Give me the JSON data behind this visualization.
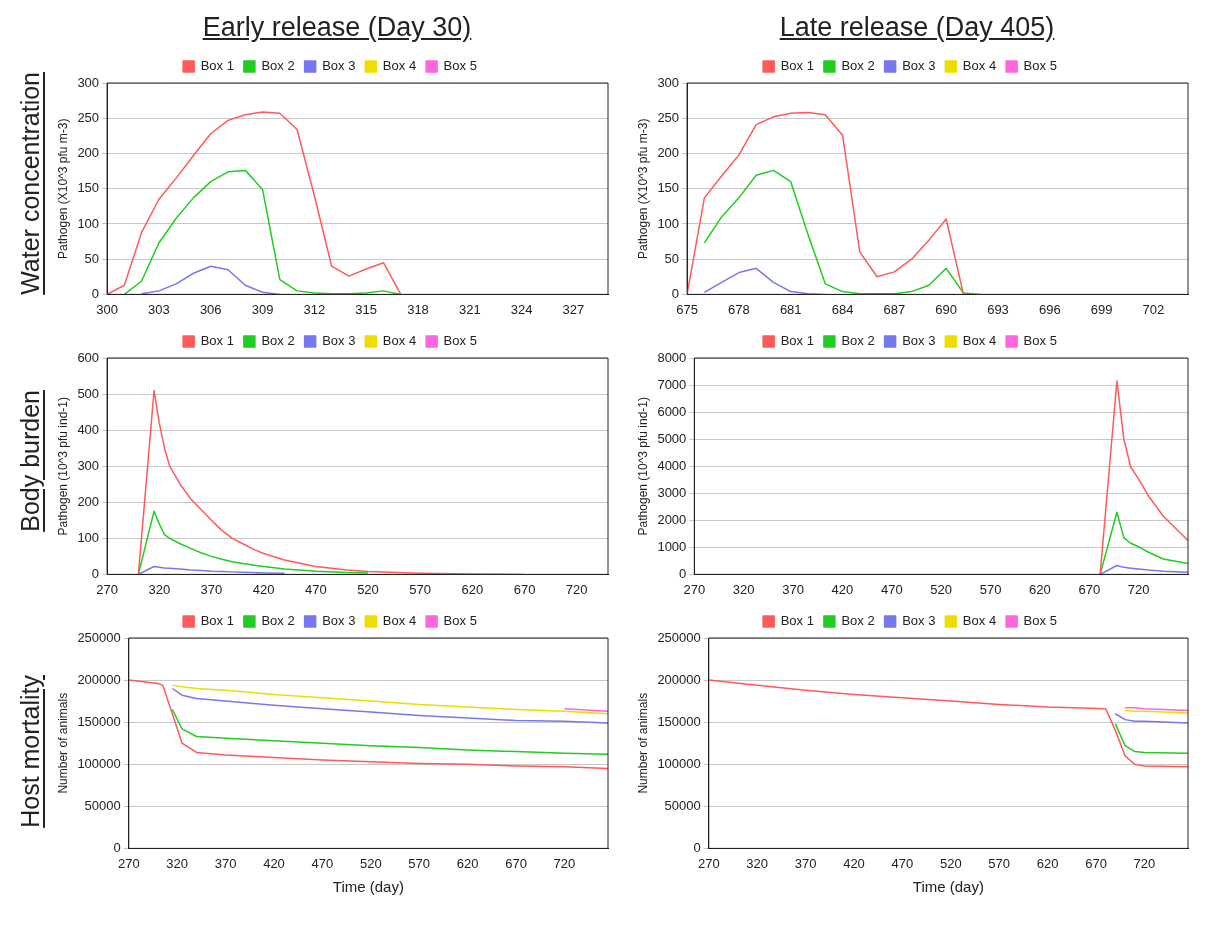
{
  "chart_data": [
    {
      "type": "line",
      "title": "Early release (Day 30)",
      "annotations": [
        "Water concentration"
      ],
      "ylabel": "Pathogen (X10^3 pfu m-3)",
      "xlim": [
        300,
        329
      ],
      "xticks": [
        300,
        303,
        306,
        309,
        312,
        315,
        318,
        321,
        324,
        327
      ],
      "ylim": [
        0,
        300
      ],
      "yticks": [
        0,
        50,
        100,
        150,
        200,
        250,
        300
      ],
      "grid": "y",
      "legend": "top",
      "marker": "none",
      "line_style": "solid",
      "x": [
        300,
        301,
        302,
        303,
        304,
        305,
        306,
        307,
        308,
        309,
        310,
        311,
        312,
        313,
        314,
        315,
        316,
        317
      ],
      "series": [
        {
          "name": "Box 1",
          "color": "#ff5a5a",
          "values": [
            0,
            13,
            88,
            135,
            165,
            197,
            228,
            247,
            255,
            259,
            257,
            234,
            140,
            40,
            26,
            36,
            45,
            0
          ]
        },
        {
          "name": "Box 2",
          "color": "#22cc22",
          "values": [
            null,
            0,
            19,
            73,
            108,
            137,
            160,
            174,
            176,
            149,
            21,
            5,
            2,
            1,
            1,
            2,
            5,
            0
          ]
        },
        {
          "name": "Box 3",
          "color": "#7777ee",
          "values": [
            null,
            null,
            1,
            5,
            15,
            30,
            40,
            35,
            13,
            3,
            0,
            null,
            null,
            null,
            null,
            null,
            null,
            null
          ]
        },
        {
          "name": "Box 4",
          "color": "#eedd00",
          "values": [
            null,
            null,
            null,
            null,
            null,
            null,
            null,
            null,
            null,
            null,
            null,
            null,
            null,
            null,
            null,
            null,
            null,
            null
          ]
        },
        {
          "name": "Box 5",
          "color": "#ff66dd",
          "values": [
            null,
            null,
            null,
            null,
            null,
            null,
            null,
            null,
            null,
            null,
            null,
            null,
            null,
            null,
            null,
            null,
            null,
            null
          ]
        }
      ]
    },
    {
      "type": "line",
      "title": "Late release (Day 405)",
      "ylabel": "Pathogen (X10^3 pfu m-3)",
      "xlim": [
        675,
        704
      ],
      "xticks": [
        675,
        678,
        681,
        684,
        687,
        690,
        693,
        696,
        699,
        702
      ],
      "ylim": [
        0,
        300
      ],
      "yticks": [
        0,
        50,
        100,
        150,
        200,
        250,
        300
      ],
      "grid": "y",
      "legend": "top",
      "marker": "none",
      "line_style": "solid",
      "x": [
        675,
        676,
        677,
        678,
        679,
        680,
        681,
        682,
        683,
        684,
        685,
        686,
        687,
        688,
        689,
        690,
        691,
        692
      ],
      "series": [
        {
          "name": "Box 1",
          "color": "#ff5a5a",
          "values": [
            0,
            137,
            168,
            198,
            241,
            252,
            257,
            258,
            255,
            226,
            60,
            25,
            32,
            50,
            77,
            107,
            0,
            null
          ]
        },
        {
          "name": "Box 2",
          "color": "#22cc22",
          "values": [
            null,
            73,
            110,
            137,
            169,
            176,
            160,
            85,
            15,
            4,
            1,
            1,
            1,
            4,
            13,
            37,
            2,
            0
          ]
        },
        {
          "name": "Box 3",
          "color": "#7777ee",
          "values": [
            null,
            3,
            17,
            31,
            37,
            17,
            4,
            1,
            0,
            null,
            null,
            null,
            null,
            null,
            null,
            null,
            null,
            null
          ]
        },
        {
          "name": "Box 4",
          "color": "#eedd00",
          "values": [
            null,
            null,
            null,
            null,
            null,
            null,
            null,
            null,
            null,
            null,
            null,
            null,
            null,
            null,
            null,
            null,
            null,
            null
          ]
        },
        {
          "name": "Box 5",
          "color": "#ff66dd",
          "values": [
            null,
            null,
            null,
            null,
            null,
            null,
            null,
            null,
            null,
            null,
            null,
            null,
            null,
            null,
            null,
            null,
            null,
            null
          ]
        }
      ]
    },
    {
      "type": "line",
      "annotations": [
        "Body burden"
      ],
      "ylabel": "Pathogen (10^3 pfu ind-1)",
      "xlim": [
        270,
        750
      ],
      "xticks": [
        270,
        320,
        370,
        420,
        470,
        520,
        570,
        620,
        670,
        720
      ],
      "ylim": [
        0,
        600
      ],
      "yticks": [
        0,
        100,
        200,
        300,
        400,
        500,
        600
      ],
      "grid": "y",
      "legend": "top",
      "marker": "none",
      "line_style": "solid",
      "x": [
        300,
        315,
        320,
        325,
        330,
        340,
        350,
        360,
        370,
        380,
        390,
        400,
        410,
        420,
        440,
        470,
        500,
        520,
        570,
        620,
        670
      ],
      "series": [
        {
          "name": "Box 1",
          "color": "#ff5a5a",
          "values": [
            0,
            510,
            420,
            350,
            300,
            250,
            210,
            180,
            150,
            122,
            100,
            85,
            70,
            58,
            40,
            22,
            12,
            8,
            3,
            1,
            0
          ]
        },
        {
          "name": "Box 2",
          "color": "#22cc22",
          "values": [
            0,
            175,
            140,
            110,
            100,
            85,
            72,
            60,
            50,
            42,
            35,
            30,
            26,
            22,
            15,
            9,
            5,
            4,
            null,
            null,
            null
          ]
        },
        {
          "name": "Box 3",
          "color": "#7777ee",
          "values": [
            0,
            22,
            20,
            18,
            17,
            15,
            12,
            11,
            9,
            8,
            7,
            6,
            5,
            4,
            3,
            null,
            null,
            null,
            null,
            null,
            null
          ]
        },
        {
          "name": "Box 4",
          "color": "#eedd00",
          "values": [
            null,
            null,
            null,
            null,
            null,
            null,
            null,
            null,
            null,
            null,
            null,
            null,
            null,
            null,
            null,
            null,
            null,
            null,
            null,
            null,
            null
          ]
        },
        {
          "name": "Box 5",
          "color": "#ff66dd",
          "values": [
            null,
            null,
            null,
            null,
            null,
            null,
            null,
            null,
            null,
            null,
            null,
            null,
            null,
            null,
            null,
            null,
            null,
            null,
            null,
            null,
            null
          ]
        }
      ]
    },
    {
      "type": "line",
      "ylabel": "Pathogen (10^3 pfu ind-1)",
      "xlim": [
        270,
        770
      ],
      "xticks": [
        270,
        320,
        370,
        420,
        470,
        520,
        570,
        620,
        670,
        720
      ],
      "ylim": [
        0,
        8000
      ],
      "yticks": [
        0,
        1000,
        2000,
        3000,
        4000,
        5000,
        6000,
        7000,
        8000
      ],
      "grid": "y",
      "legend": "top",
      "marker": "none",
      "line_style": "solid",
      "x": [
        681,
        698,
        705,
        712,
        720,
        730,
        745,
        770
      ],
      "series": [
        {
          "name": "Box 1",
          "color": "#ff5a5a",
          "values": [
            0,
            7150,
            5000,
            3970,
            3520,
            2900,
            2150,
            1250
          ]
        },
        {
          "name": "Box 2",
          "color": "#22cc22",
          "values": [
            0,
            2300,
            1360,
            1150,
            1020,
            820,
            570,
            400
          ]
        },
        {
          "name": "Box 3",
          "color": "#7777ee",
          "values": [
            0,
            330,
            260,
            230,
            200,
            160,
            120,
            80
          ]
        },
        {
          "name": "Box 4",
          "color": "#eedd00",
          "values": [
            null,
            null,
            null,
            null,
            null,
            null,
            null,
            null
          ]
        },
        {
          "name": "Box 5",
          "color": "#ff66dd",
          "values": [
            null,
            null,
            null,
            null,
            null,
            null,
            null,
            null
          ]
        }
      ]
    },
    {
      "type": "line",
      "annotations": [
        "Host mortality"
      ],
      "xlabel": "Time (day)",
      "ylabel": "Number of animals",
      "xlim": [
        270,
        765
      ],
      "xticks": [
        270,
        320,
        370,
        420,
        470,
        520,
        570,
        620,
        670,
        720
      ],
      "ylim": [
        0,
        250000
      ],
      "yticks": [
        0,
        50000,
        100000,
        150000,
        200000,
        250000
      ],
      "grid": "y",
      "legend": "top",
      "marker": "none",
      "line_style": "solid",
      "x": [
        270,
        300,
        305,
        315,
        325,
        340,
        370,
        420,
        470,
        520,
        570,
        620,
        670,
        720,
        765
      ],
      "series": [
        {
          "name": "Box 1",
          "color": "#ff5a5a",
          "values": [
            200000,
            196000,
            194000,
            160000,
            125000,
            114000,
            111000,
            108000,
            105000,
            103000,
            101000,
            100000,
            98000,
            97000,
            95000
          ]
        },
        {
          "name": "Box 2",
          "color": "#22cc22",
          "values": [
            null,
            null,
            null,
            165000,
            142000,
            133000,
            131000,
            128000,
            125000,
            122000,
            120000,
            117000,
            115000,
            113000,
            112000
          ]
        },
        {
          "name": "Box 3",
          "color": "#7777ee",
          "values": [
            null,
            null,
            null,
            190000,
            182000,
            178000,
            175000,
            170000,
            166000,
            162000,
            158000,
            155000,
            152000,
            151000,
            149000
          ]
        },
        {
          "name": "Box 4",
          "color": "#eedd00",
          "values": [
            null,
            null,
            null,
            194000,
            192000,
            190000,
            188000,
            183000,
            179000,
            175000,
            171000,
            168000,
            165000,
            163000,
            160000
          ]
        },
        {
          "name": "Box 5",
          "color": "#ff66dd",
          "values": [
            null,
            null,
            null,
            null,
            null,
            null,
            null,
            null,
            null,
            null,
            null,
            null,
            null,
            166000,
            163000
          ]
        }
      ]
    },
    {
      "type": "line",
      "xlabel": "Time (day)",
      "ylabel": "Number of animals",
      "xlim": [
        270,
        765
      ],
      "xticks": [
        270,
        320,
        370,
        420,
        470,
        520,
        570,
        620,
        670,
        720
      ],
      "ylim": [
        0,
        250000
      ],
      "yticks": [
        0,
        50000,
        100000,
        150000,
        200000,
        250000
      ],
      "grid": "y",
      "legend": "top",
      "marker": "none",
      "line_style": "solid",
      "x": [
        270,
        320,
        370,
        420,
        470,
        520,
        570,
        620,
        680,
        690,
        700,
        710,
        720,
        765
      ],
      "series": [
        {
          "name": "Box 1",
          "color": "#ff5a5a",
          "values": [
            200000,
            194000,
            188000,
            183000,
            179000,
            175000,
            171000,
            168000,
            166000,
            140000,
            110000,
            100000,
            98000,
            97000
          ]
        },
        {
          "name": "Box 2",
          "color": "#22cc22",
          "values": [
            null,
            null,
            null,
            null,
            null,
            null,
            null,
            null,
            null,
            148000,
            122000,
            115000,
            114000,
            113000
          ]
        },
        {
          "name": "Box 3",
          "color": "#7777ee",
          "values": [
            null,
            null,
            null,
            null,
            null,
            null,
            null,
            null,
            null,
            160000,
            153000,
            151000,
            151000,
            149000
          ]
        },
        {
          "name": "Box 4",
          "color": "#eedd00",
          "values": [
            null,
            null,
            null,
            null,
            null,
            null,
            null,
            null,
            null,
            null,
            164000,
            163000,
            163000,
            161000
          ]
        },
        {
          "name": "Box 5",
          "color": "#ff66dd",
          "values": [
            null,
            null,
            null,
            null,
            null,
            null,
            null,
            null,
            null,
            null,
            167000,
            167000,
            166000,
            164000
          ]
        }
      ]
    }
  ]
}
